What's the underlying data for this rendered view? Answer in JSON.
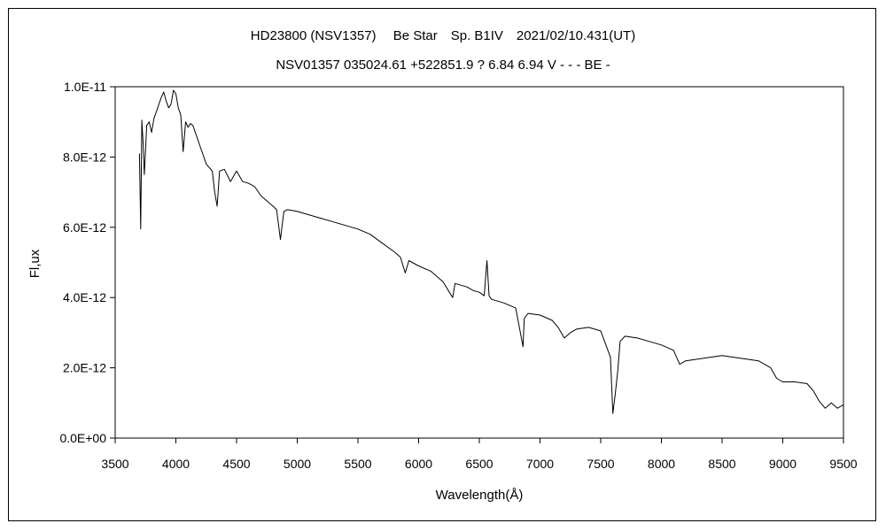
{
  "chart_data": {
    "type": "line",
    "title": "HD23800 (NSV1357)　 Be Star　Sp. B1IV　2021/02/10.431(UT)",
    "subtitle": "NSV01357 035024.61 +522851.9 ? 6.84 6.94 V - - - BE -",
    "xlabel": "Wavelength(Å)",
    "ylabel": "Fl,ux",
    "xlim": [
      3500,
      9500
    ],
    "ylim": [
      0,
      1e-11
    ],
    "x_ticks": [
      "3500",
      "4000",
      "4500",
      "5000",
      "5500",
      "6000",
      "6500",
      "7000",
      "7500",
      "8000",
      "8500",
      "9000",
      "9500"
    ],
    "y_ticks": [
      "0.0E+00",
      "2.0E-12",
      "4.0E-12",
      "6.0E-12",
      "8.0E-12",
      "1.0E-11"
    ],
    "grid": false,
    "legend": "none",
    "line_color": "#000000",
    "series": [
      {
        "x": [
          3700,
          3710,
          3720,
          3730,
          3740,
          3760,
          3780,
          3800,
          3820,
          3840,
          3860,
          3880,
          3900,
          3920,
          3940,
          3960,
          3980,
          4000,
          4020,
          4040,
          4060,
          4080,
          4100,
          4120,
          4140,
          4160,
          4180,
          4200,
          4250,
          4300,
          4320,
          4340,
          4360,
          4400,
          4450,
          4500,
          4550,
          4600,
          4650,
          4700,
          4750,
          4800,
          4830,
          4861,
          4890,
          4920,
          5000,
          5100,
          5200,
          5300,
          5400,
          5500,
          5600,
          5700,
          5800,
          5850,
          5890,
          5920,
          6000,
          6100,
          6200,
          6280,
          6300,
          6350,
          6400,
          6450,
          6500,
          6540,
          6563,
          6580,
          6600,
          6700,
          6800,
          6860,
          6870,
          6880,
          6900,
          7000,
          7100,
          7150,
          7200,
          7250,
          7300,
          7400,
          7500,
          7580,
          7600,
          7620,
          7640,
          7660,
          7700,
          7800,
          7900,
          8000,
          8100,
          8150,
          8200,
          8300,
          8400,
          8500,
          8600,
          8700,
          8800,
          8900,
          8950,
          9000,
          9100,
          9200,
          9250,
          9300,
          9350,
          9400,
          9450,
          9500
        ],
        "y": [
          8.1e-12,
          5.95e-12,
          9.05e-12,
          8.4e-12,
          7.5e-12,
          8.9e-12,
          9e-12,
          8.7e-12,
          9.1e-12,
          9.3e-12,
          9.5e-12,
          9.7e-12,
          9.85e-12,
          9.6e-12,
          9.4e-12,
          9.5e-12,
          9.9e-12,
          9.8e-12,
          9.4e-12,
          9.2e-12,
          8.15e-12,
          9e-12,
          8.85e-12,
          8.95e-12,
          8.9e-12,
          8.7e-12,
          8.5e-12,
          8.3e-12,
          7.8e-12,
          7.6e-12,
          7e-12,
          6.6e-12,
          7.6e-12,
          7.65e-12,
          7.3e-12,
          7.6e-12,
          7.3e-12,
          7.25e-12,
          7.15e-12,
          6.9e-12,
          6.75e-12,
          6.6e-12,
          6.5e-12,
          5.65e-12,
          6.45e-12,
          6.5e-12,
          6.45e-12,
          6.35e-12,
          6.25e-12,
          6.15e-12,
          6.05e-12,
          5.95e-12,
          5.8e-12,
          5.55e-12,
          5.3e-12,
          5.15e-12,
          4.7e-12,
          5.05e-12,
          4.9e-12,
          4.75e-12,
          4.45e-12,
          4e-12,
          4.4e-12,
          4.35e-12,
          4.3e-12,
          4.2e-12,
          4.15e-12,
          4.05e-12,
          5.05e-12,
          4.05e-12,
          3.95e-12,
          3.85e-12,
          3.7e-12,
          2.6e-12,
          3.4e-12,
          3.45e-12,
          3.55e-12,
          3.5e-12,
          3.35e-12,
          3.15e-12,
          2.85e-12,
          3e-12,
          3.1e-12,
          3.15e-12,
          3.05e-12,
          2.3e-12,
          7e-13,
          1.25e-12,
          1.9e-12,
          2.75e-12,
          2.9e-12,
          2.85e-12,
          2.75e-12,
          2.65e-12,
          2.5e-12,
          2.1e-12,
          2.2e-12,
          2.25e-12,
          2.3e-12,
          2.35e-12,
          2.3e-12,
          2.25e-12,
          2.2e-12,
          2e-12,
          1.7e-12,
          1.6e-12,
          1.6e-12,
          1.55e-12,
          1.35e-12,
          1.05e-12,
          8.5e-13,
          1e-12,
          8.5e-13,
          9.5e-13
        ]
      }
    ]
  }
}
